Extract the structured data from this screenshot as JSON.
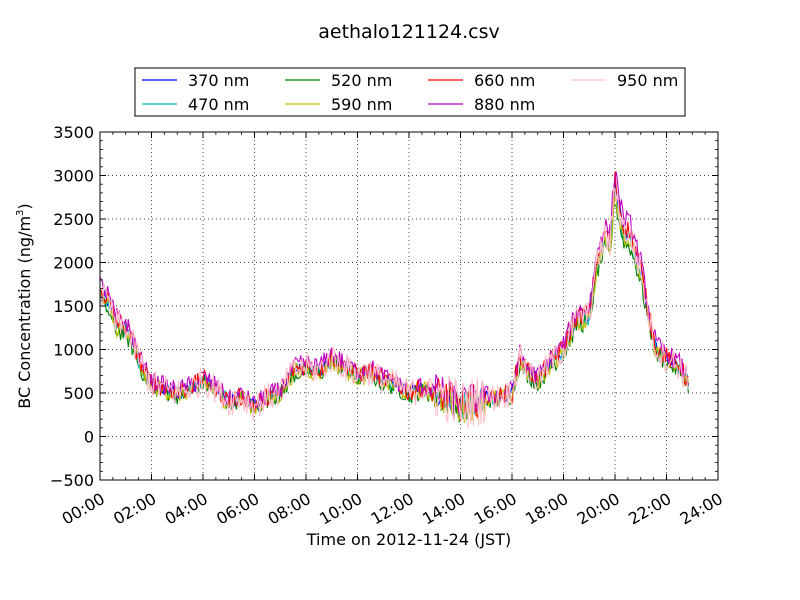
{
  "chart_data": {
    "type": "line",
    "title": "aethalo121124.csv",
    "xlabel": "Time on 2012-11-24 (JST)",
    "ylabel": "BC Concentration (ng/m",
    "ylabel_sup": "3",
    "ylabel_close": ")",
    "xlim_hours": [
      0,
      24
    ],
    "ylim": [
      -500,
      3500
    ],
    "x_tick_labels": [
      "00:00",
      "02:00",
      "04:00",
      "06:00",
      "08:00",
      "10:00",
      "12:00",
      "14:00",
      "16:00",
      "18:00",
      "20:00",
      "22:00",
      "24:00"
    ],
    "y_tick_labels": [
      "−500",
      "0",
      "500",
      "1000",
      "1500",
      "2000",
      "2500",
      "3000",
      "3500"
    ],
    "grid": true,
    "legend_position": "top, above plot",
    "approx_profile": {
      "x_hours": [
        0,
        0.3,
        0.6,
        1.0,
        1.3,
        1.7,
        2.0,
        2.5,
        3.0,
        3.5,
        4.0,
        4.5,
        5.0,
        5.5,
        6.0,
        6.5,
        7.0,
        7.5,
        8.0,
        8.5,
        9.0,
        9.5,
        10.0,
        10.5,
        11.0,
        11.5,
        12.0,
        12.5,
        13.0,
        13.5,
        14.0,
        14.5,
        15.0,
        15.5,
        16.0,
        16.3,
        16.6,
        17.0,
        17.5,
        18.0,
        18.5,
        19.0,
        19.3,
        19.6,
        19.8,
        20.0,
        20.3,
        20.6,
        21.0,
        21.3,
        21.6,
        22.0,
        22.5,
        22.9
      ],
      "y_ng_m3": [
        1650,
        1550,
        1300,
        1250,
        1050,
        750,
        600,
        550,
        500,
        550,
        650,
        550,
        400,
        450,
        350,
        450,
        500,
        750,
        800,
        750,
        900,
        800,
        700,
        750,
        650,
        600,
        500,
        550,
        500,
        450,
        350,
        400,
        450,
        450,
        500,
        900,
        750,
        650,
        850,
        1000,
        1350,
        1400,
        2000,
        2300,
        2200,
        2900,
        2400,
        2300,
        1900,
        1400,
        1000,
        900,
        800,
        600
      ]
    },
    "series": [
      {
        "name": "370 nm",
        "color": "#0000ff"
      },
      {
        "name": "470 nm",
        "color": "#00bfbf"
      },
      {
        "name": "520 nm",
        "color": "#008000"
      },
      {
        "name": "590 nm",
        "color": "#bfbf00"
      },
      {
        "name": "660 nm",
        "color": "#ff0000"
      },
      {
        "name": "880 nm",
        "color": "#bf00bf"
      },
      {
        "name": "950 nm",
        "color": "#ffc0cb"
      }
    ]
  }
}
